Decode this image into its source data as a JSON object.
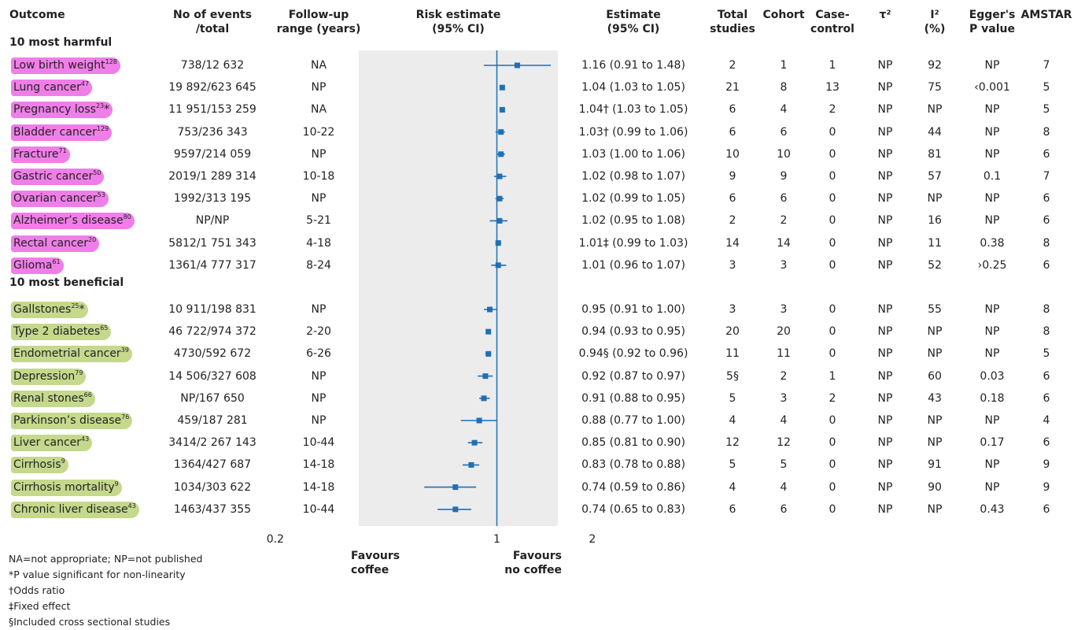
{
  "headers": {
    "outcome": "Outcome",
    "events_line1": "No of events",
    "events_line2": "/total",
    "followup_line1": "Follow-up",
    "followup_line2": "range (years)",
    "risk_line1": "Risk estimate",
    "risk_line2": "(95% CI)",
    "estimate_line1": "Estimate",
    "estimate_line2": "(95% CI)",
    "total_line1": "Total",
    "total_line2": "studies",
    "cohort": "Cohort",
    "casecontrol_line1": "Case-",
    "casecontrol_line2": "control",
    "tau": "τ²",
    "i2_line1": "I²",
    "i2_line2": "(%)",
    "egger_line1": "Egger's",
    "egger_line2": "P value",
    "amstar": "AMSTAR"
  },
  "sections": {
    "harmful": "10 most harmful",
    "beneficial": "10 most beneficial"
  },
  "colors": {
    "harmful": "#f07ee8",
    "beneficial": "#c4d98b",
    "plot_bg": "#ececec",
    "marker": "#1f6fb5",
    "line": "#1f6fb5"
  },
  "chart_data": {
    "type": "forest",
    "x_scale": "log",
    "xlim": [
      0.2,
      2
    ],
    "x_ticks": [
      "0.2",
      "1",
      "2"
    ],
    "reference_line": 1,
    "favours_left_line1": "Favours",
    "favours_left_line2": "coffee",
    "favours_right_line1": "Favours",
    "favours_right_line2": "no coffee",
    "rows": [
      {
        "group": "harmful",
        "outcome": "Low birth weight",
        "ref": "128",
        "mark": "",
        "events": "738/12 632",
        "followup": "NA",
        "estimate": 1.16,
        "lower": 0.91,
        "upper": 1.48,
        "estimate_text": "1.16 (0.91 to 1.48)",
        "total": "2",
        "cohort": "1",
        "casecontrol": "1",
        "tau2": "NP",
        "i2": "92",
        "egger": "NP",
        "amstar": "7"
      },
      {
        "group": "harmful",
        "outcome": "Lung cancer",
        "ref": "47",
        "mark": "",
        "events": "19 892/623 645",
        "followup": "NP",
        "estimate": 1.04,
        "lower": 1.03,
        "upper": 1.05,
        "estimate_text": "1.04 (1.03 to 1.05)",
        "total": "21",
        "cohort": "8",
        "casecontrol": "13",
        "tau2": "NP",
        "i2": "75",
        "egger": "‹0.001",
        "amstar": "5"
      },
      {
        "group": "harmful",
        "outcome": "Pregnancy loss",
        "ref": "23",
        "mark": "*",
        "events": "11 951/153 259",
        "followup": "NA",
        "estimate": 1.04,
        "lower": 1.03,
        "upper": 1.05,
        "estimate_text": "1.04† (1.03 to 1.05)",
        "total": "6",
        "cohort": "4",
        "casecontrol": "2",
        "tau2": "NP",
        "i2": "NP",
        "egger": "NP",
        "amstar": "5"
      },
      {
        "group": "harmful",
        "outcome": "Bladder cancer",
        "ref": "129",
        "mark": "",
        "events": "753/236 343",
        "followup": "10-22",
        "estimate": 1.03,
        "lower": 0.99,
        "upper": 1.06,
        "estimate_text": "1.03† (0.99 to 1.06)",
        "total": "6",
        "cohort": "6",
        "casecontrol": "0",
        "tau2": "NP",
        "i2": "44",
        "egger": "NP",
        "amstar": "8"
      },
      {
        "group": "harmful",
        "outcome": "Fracture",
        "ref": "71",
        "mark": "",
        "events": "9597/214 059",
        "followup": "NP",
        "estimate": 1.03,
        "lower": 1.0,
        "upper": 1.06,
        "estimate_text": "1.03 (1.00 to 1.06)",
        "total": "10",
        "cohort": "10",
        "casecontrol": "0",
        "tau2": "NP",
        "i2": "81",
        "egger": "NP",
        "amstar": "6"
      },
      {
        "group": "harmful",
        "outcome": "Gastric cancer",
        "ref": "50",
        "mark": "",
        "events": "2019/1 289 314",
        "followup": "10-18",
        "estimate": 1.02,
        "lower": 0.98,
        "upper": 1.07,
        "estimate_text": "1.02 (0.98 to 1.07)",
        "total": "9",
        "cohort": "9",
        "casecontrol": "0",
        "tau2": "NP",
        "i2": "57",
        "egger": "0.1",
        "amstar": "7"
      },
      {
        "group": "harmful",
        "outcome": "Ovarian cancer",
        "ref": "53",
        "mark": "",
        "events": "1992/313 195",
        "followup": "NP",
        "estimate": 1.02,
        "lower": 0.99,
        "upper": 1.05,
        "estimate_text": "1.02 (0.99 to 1.05)",
        "total": "6",
        "cohort": "6",
        "casecontrol": "0",
        "tau2": "NP",
        "i2": "NP",
        "egger": "NP",
        "amstar": "6"
      },
      {
        "group": "harmful",
        "outcome": "Alzheimer’s disease",
        "ref": "80",
        "mark": "",
        "events": "NP/NP",
        "followup": "5-21",
        "estimate": 1.02,
        "lower": 0.95,
        "upper": 1.08,
        "estimate_text": "1.02 (0.95 to 1.08)",
        "total": "2",
        "cohort": "2",
        "casecontrol": "0",
        "tau2": "NP",
        "i2": "16",
        "egger": "NP",
        "amstar": "6"
      },
      {
        "group": "harmful",
        "outcome": "Rectal cancer",
        "ref": "20",
        "mark": "",
        "events": "5812/1 751 343",
        "followup": "4-18",
        "estimate": 1.01,
        "lower": 0.99,
        "upper": 1.03,
        "estimate_text": "1.01‡ (0.99 to 1.03)",
        "total": "14",
        "cohort": "14",
        "casecontrol": "0",
        "tau2": "NP",
        "i2": "11",
        "egger": "0.38",
        "amstar": "8"
      },
      {
        "group": "harmful",
        "outcome": "Glioma",
        "ref": "61",
        "mark": "",
        "events": "1361/4 777 317",
        "followup": "8-24",
        "estimate": 1.01,
        "lower": 0.96,
        "upper": 1.07,
        "estimate_text": "1.01 (0.96 to 1.07)",
        "total": "3",
        "cohort": "3",
        "casecontrol": "0",
        "tau2": "NP",
        "i2": "52",
        "egger": "›0.25",
        "amstar": "6"
      },
      {
        "group": "beneficial",
        "outcome": "Gallstones",
        "ref": "25",
        "mark": "*",
        "events": "10 911/198 831",
        "followup": "NP",
        "estimate": 0.95,
        "lower": 0.91,
        "upper": 1.0,
        "estimate_text": "0.95 (0.91 to 1.00)",
        "total": "3",
        "cohort": "3",
        "casecontrol": "0",
        "tau2": "NP",
        "i2": "55",
        "egger": "NP",
        "amstar": "8"
      },
      {
        "group": "beneficial",
        "outcome": "Type 2 diabetes",
        "ref": "65",
        "mark": "",
        "events": "46 722/974 372",
        "followup": "2-20",
        "estimate": 0.94,
        "lower": 0.93,
        "upper": 0.95,
        "estimate_text": "0.94 (0.93 to 0.95)",
        "total": "20",
        "cohort": "20",
        "casecontrol": "0",
        "tau2": "NP",
        "i2": "NP",
        "egger": "NP",
        "amstar": "8"
      },
      {
        "group": "beneficial",
        "outcome": "Endometrial cancer",
        "ref": "39",
        "mark": "",
        "events": "4730/592 672",
        "followup": "6-26",
        "estimate": 0.94,
        "lower": 0.92,
        "upper": 0.96,
        "estimate_text": "0.94§ (0.92 to 0.96)",
        "total": "11",
        "cohort": "11",
        "casecontrol": "0",
        "tau2": "NP",
        "i2": "NP",
        "egger": "NP",
        "amstar": "5"
      },
      {
        "group": "beneficial",
        "outcome": "Depression",
        "ref": "79",
        "mark": "",
        "events": "14 506/327 608",
        "followup": "NP",
        "estimate": 0.92,
        "lower": 0.87,
        "upper": 0.97,
        "estimate_text": "0.92 (0.87 to 0.97)",
        "total": "5§",
        "cohort": "2",
        "casecontrol": "1",
        "tau2": "NP",
        "i2": "60",
        "egger": "0.03",
        "amstar": "6"
      },
      {
        "group": "beneficial",
        "outcome": "Renal stones",
        "ref": "66",
        "mark": "",
        "events": "NP/167 650",
        "followup": "NP",
        "estimate": 0.91,
        "lower": 0.88,
        "upper": 0.95,
        "estimate_text": "0.91 (0.88 to 0.95)",
        "total": "5",
        "cohort": "3",
        "casecontrol": "2",
        "tau2": "NP",
        "i2": "43",
        "egger": "0.18",
        "amstar": "6"
      },
      {
        "group": "beneficial",
        "outcome": "Parkinson’s disease",
        "ref": "76",
        "mark": "",
        "events": "459/187 281",
        "followup": "NP",
        "estimate": 0.88,
        "lower": 0.77,
        "upper": 1.0,
        "estimate_text": "0.88 (0.77 to 1.00)",
        "total": "4",
        "cohort": "4",
        "casecontrol": "0",
        "tau2": "NP",
        "i2": "NP",
        "egger": "NP",
        "amstar": "4"
      },
      {
        "group": "beneficial",
        "outcome": "Liver cancer",
        "ref": "43",
        "mark": "",
        "events": "3414/2 267 143",
        "followup": "10-44",
        "estimate": 0.85,
        "lower": 0.81,
        "upper": 0.9,
        "estimate_text": "0.85 (0.81 to 0.90)",
        "total": "12",
        "cohort": "12",
        "casecontrol": "0",
        "tau2": "NP",
        "i2": "NP",
        "egger": "0.17",
        "amstar": "6"
      },
      {
        "group": "beneficial",
        "outcome": "Cirrhosis",
        "ref": "9",
        "mark": "",
        "events": "1364/427 687",
        "followup": "14-18",
        "estimate": 0.83,
        "lower": 0.78,
        "upper": 0.88,
        "estimate_text": "0.83 (0.78 to 0.88)",
        "total": "5",
        "cohort": "5",
        "casecontrol": "0",
        "tau2": "NP",
        "i2": "91",
        "egger": "NP",
        "amstar": "9"
      },
      {
        "group": "beneficial",
        "outcome": "Cirrhosis mortality",
        "ref": "9",
        "mark": "",
        "events": "1034/303 622",
        "followup": "14-18",
        "estimate": 0.74,
        "lower": 0.59,
        "upper": 0.86,
        "estimate_text": "0.74 (0.59 to 0.86)",
        "total": "4",
        "cohort": "4",
        "casecontrol": "0",
        "tau2": "NP",
        "i2": "90",
        "egger": "NP",
        "amstar": "9"
      },
      {
        "group": "beneficial",
        "outcome": "Chronic liver disease",
        "ref": "43",
        "mark": "",
        "events": "1463/437 355",
        "followup": "10-44",
        "estimate": 0.74,
        "lower": 0.65,
        "upper": 0.83,
        "estimate_text": "0.74 (0.65 to 0.83)",
        "total": "6",
        "cohort": "6",
        "casecontrol": "0",
        "tau2": "NP",
        "i2": "NP",
        "egger": "0.43",
        "amstar": "6"
      }
    ]
  },
  "footnotes": [
    "NA=not appropriate; NP=not published",
    "*P value significant for non-linearity",
    "†Odds ratio",
    "‡Fixed effect",
    "§Included cross sectional studies"
  ]
}
